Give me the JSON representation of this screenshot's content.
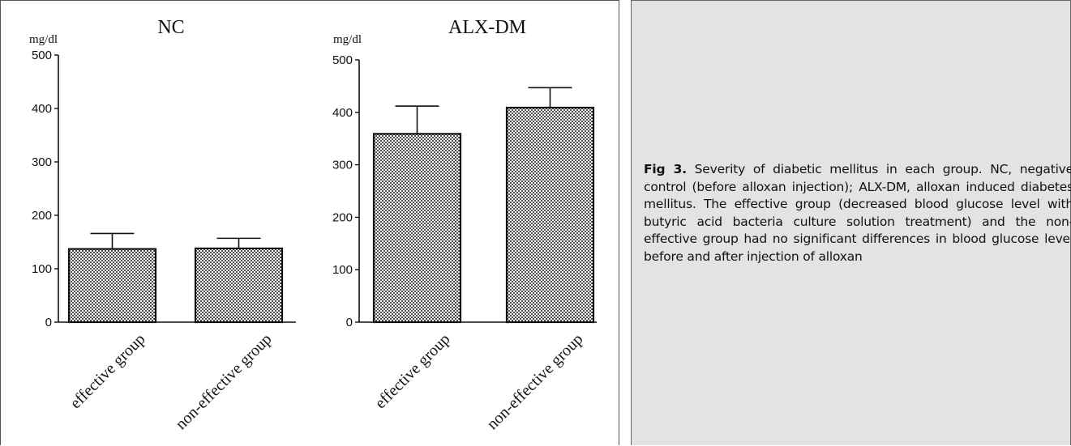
{
  "chart_data": [
    {
      "type": "bar",
      "title": "NC",
      "ylabel": "mg/dl",
      "xlabel": "",
      "ylim": [
        0,
        500
      ],
      "yticks": [
        0,
        100,
        200,
        300,
        400,
        500
      ],
      "categories": [
        "effective group",
        "non-effective group"
      ],
      "values": [
        137,
        138
      ],
      "error_upper": [
        166,
        157
      ],
      "grid": false
    },
    {
      "type": "bar",
      "title": "ALX-DM",
      "ylabel": "mg/dl",
      "xlabel": "",
      "ylim": [
        0,
        500
      ],
      "yticks": [
        0,
        100,
        200,
        300,
        400,
        500
      ],
      "categories": [
        "effective group",
        "non-effective group"
      ],
      "values": [
        359,
        409
      ],
      "error_upper": [
        412,
        447
      ],
      "grid": false
    }
  ],
  "caption": {
    "label": "Fig 3.",
    "text": " Severity of diabetic mellitus in each group. NC, negative control (before alloxan injection); ALX-DM, alloxan induced diabetes mellitus. The effective group (decreased blood glucose level with butyric acid bacteria culture solution treatment) and the non-effective group had no significant differences in blood glucose level before and after injection of alloxan"
  },
  "colors": {
    "bar_pattern": "#4a4a4a",
    "caption_background": "#e3e3e3"
  }
}
